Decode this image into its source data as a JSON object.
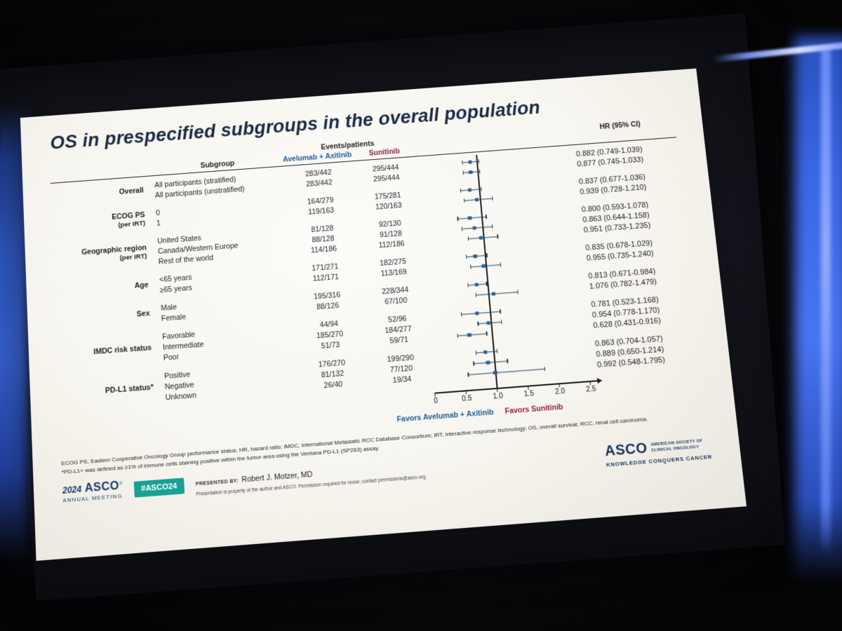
{
  "slide": {
    "title": "OS in prespecified subgroups in the overall population",
    "table_headers": {
      "subgroup": "Subgroup",
      "events_patients": "Events/patients",
      "arm1": "Avelumab + Axitinib",
      "arm2": "Sunitinib",
      "hr_ci": "HR (95% CI)"
    },
    "footnotes": {
      "line1": "ECOG PS, Eastern Cooperative Oncology Group performance status; HR, hazard ratio; IMDC, International Metastatic RCC Database Consortium; IRT, interactive response technology; OS, overall survival; RCC, renal cell carcinoma.",
      "line2": "*PD-L1+ was defined as ≥1% of immune cells staining positive within the tumor area using the Ventana PD-L1 (SP263) assay."
    },
    "footer": {
      "year": "2024",
      "asco": "ASCO",
      "registered_mark": "®",
      "annual_meeting": "ANNUAL MEETING",
      "hashtag": "#ASCO24",
      "presented_by_label": "PRESENTED BY:",
      "presenter": "Robert J. Motzer, MD",
      "disclaimer": "Presentation is property of the author and ASCO. Permission required for reuse; contact permissions@asco.org.",
      "asco_logo": "ASCO",
      "society_line1": "AMERICAN SOCIETY OF",
      "society_line2": "CLINICAL ONCOLOGY",
      "tagline": "KNOWLEDGE CONQUERS CANCER"
    },
    "colors": {
      "arm1_blue": "#1f5c99",
      "arm2_red": "#8e2433",
      "navy_title": "#1b2b44",
      "teal_badge": "#18a096",
      "marker_blue": "#2e6092"
    }
  },
  "chart_data": {
    "type": "forest",
    "title": "OS in prespecified subgroups in the overall population",
    "arms": [
      "Avelumab + Axitinib",
      "Sunitinib"
    ],
    "favors_left": "Favors Avelumab + Axitinib",
    "favors_right": "Favors Sunitinib",
    "xlim": [
      0,
      2.5
    ],
    "reference_line": 1.0,
    "x_ticks": [
      {
        "value": 0,
        "label": "0"
      },
      {
        "value": 0.5,
        "label": "0.5"
      },
      {
        "value": 1.0,
        "label": "1.0"
      },
      {
        "value": 1.5,
        "label": "1.5"
      },
      {
        "value": 2.0,
        "label": "2.0"
      },
      {
        "value": 2.5,
        "label": "2.5"
      }
    ],
    "groups": [
      {
        "name": "Overall",
        "rows": [
          {
            "label": "All participants (stratified)",
            "arm1": "283/442",
            "arm2": "295/444",
            "hr": 0.882,
            "lo": 0.749,
            "hi": 1.039,
            "hr_text": "0.882 (0.749-1.039)"
          },
          {
            "label": "All participants (unstratified)",
            "arm1": "283/442",
            "arm2": "295/444",
            "hr": 0.877,
            "lo": 0.745,
            "hi": 1.033,
            "hr_text": "0.877 (0.745-1.033)"
          }
        ]
      },
      {
        "name": "ECOG PS",
        "sub": "(per IRT)",
        "rows": [
          {
            "label": "0",
            "arm1": "164/279",
            "arm2": "175/281",
            "hr": 0.837,
            "lo": 0.677,
            "hi": 1.036,
            "hr_text": "0.837 (0.677-1.036)"
          },
          {
            "label": "1",
            "arm1": "119/163",
            "arm2": "120/163",
            "hr": 0.939,
            "lo": 0.728,
            "hi": 1.21,
            "hr_text": "0.939 (0.728-1.210)"
          }
        ]
      },
      {
        "name": "Geographic region",
        "sub": "(per IRT)",
        "rows": [
          {
            "label": "United States",
            "arm1": "81/128",
            "arm2": "92/130",
            "hr": 0.8,
            "lo": 0.593,
            "hi": 1.078,
            "hr_text": "0.800 (0.593-1.078)"
          },
          {
            "label": "Canada/Western Europe",
            "arm1": "88/128",
            "arm2": "91/128",
            "hr": 0.863,
            "lo": 0.644,
            "hi": 1.158,
            "hr_text": "0.863 (0.644-1.158)"
          },
          {
            "label": "Rest of the world",
            "arm1": "114/186",
            "arm2": "112/186",
            "hr": 0.951,
            "lo": 0.733,
            "hi": 1.235,
            "hr_text": "0.951 (0.733-1.235)"
          }
        ]
      },
      {
        "name": "Age",
        "rows": [
          {
            "label": "<65 years",
            "arm1": "171/271",
            "arm2": "182/275",
            "hr": 0.835,
            "lo": 0.678,
            "hi": 1.029,
            "hr_text": "0.835 (0.678-1.029)"
          },
          {
            "label": "≥65 years",
            "arm1": "112/171",
            "arm2": "113/169",
            "hr": 0.955,
            "lo": 0.735,
            "hi": 1.24,
            "hr_text": "0.955 (0.735-1.240)"
          }
        ]
      },
      {
        "name": "Sex",
        "rows": [
          {
            "label": "Male",
            "arm1": "195/316",
            "arm2": "228/344",
            "hr": 0.813,
            "lo": 0.671,
            "hi": 0.984,
            "hr_text": "0.813 (0.671-0.984)"
          },
          {
            "label": "Female",
            "arm1": "88/126",
            "arm2": "67/100",
            "hr": 1.076,
            "lo": 0.782,
            "hi": 1.479,
            "hr_text": "1.076 (0.782-1.479)"
          }
        ]
      },
      {
        "name": "IMDC risk status",
        "rows": [
          {
            "label": "Favorable",
            "arm1": "44/94",
            "arm2": "52/96",
            "hr": 0.781,
            "lo": 0.523,
            "hi": 1.168,
            "hr_text": "0.781 (0.523-1.168)"
          },
          {
            "label": "Intermediate",
            "arm1": "185/270",
            "arm2": "184/277",
            "hr": 0.954,
            "lo": 0.778,
            "hi": 1.17,
            "hr_text": "0.954 (0.778-1.170)"
          },
          {
            "label": "Poor",
            "arm1": "51/73",
            "arm2": "59/71",
            "hr": 0.628,
            "lo": 0.431,
            "hi": 0.916,
            "hr_text": "0.628 (0.431-0.916)"
          }
        ]
      },
      {
        "name": "PD-L1 status*",
        "rows": [
          {
            "label": "Positive",
            "arm1": "176/270",
            "arm2": "199/290",
            "hr": 0.863,
            "lo": 0.704,
            "hi": 1.057,
            "hr_text": "0.863 (0.704-1.057)"
          },
          {
            "label": "Negative",
            "arm1": "81/132",
            "arm2": "77/120",
            "hr": 0.889,
            "lo": 0.65,
            "hi": 1.214,
            "hr_text": "0.889 (0.650-1.214)"
          },
          {
            "label": "Unknown",
            "arm1": "26/40",
            "arm2": "19/34",
            "hr": 0.992,
            "lo": 0.548,
            "hi": 1.795,
            "hr_text": "0.992 (0.548-1.795)"
          }
        ]
      }
    ]
  }
}
